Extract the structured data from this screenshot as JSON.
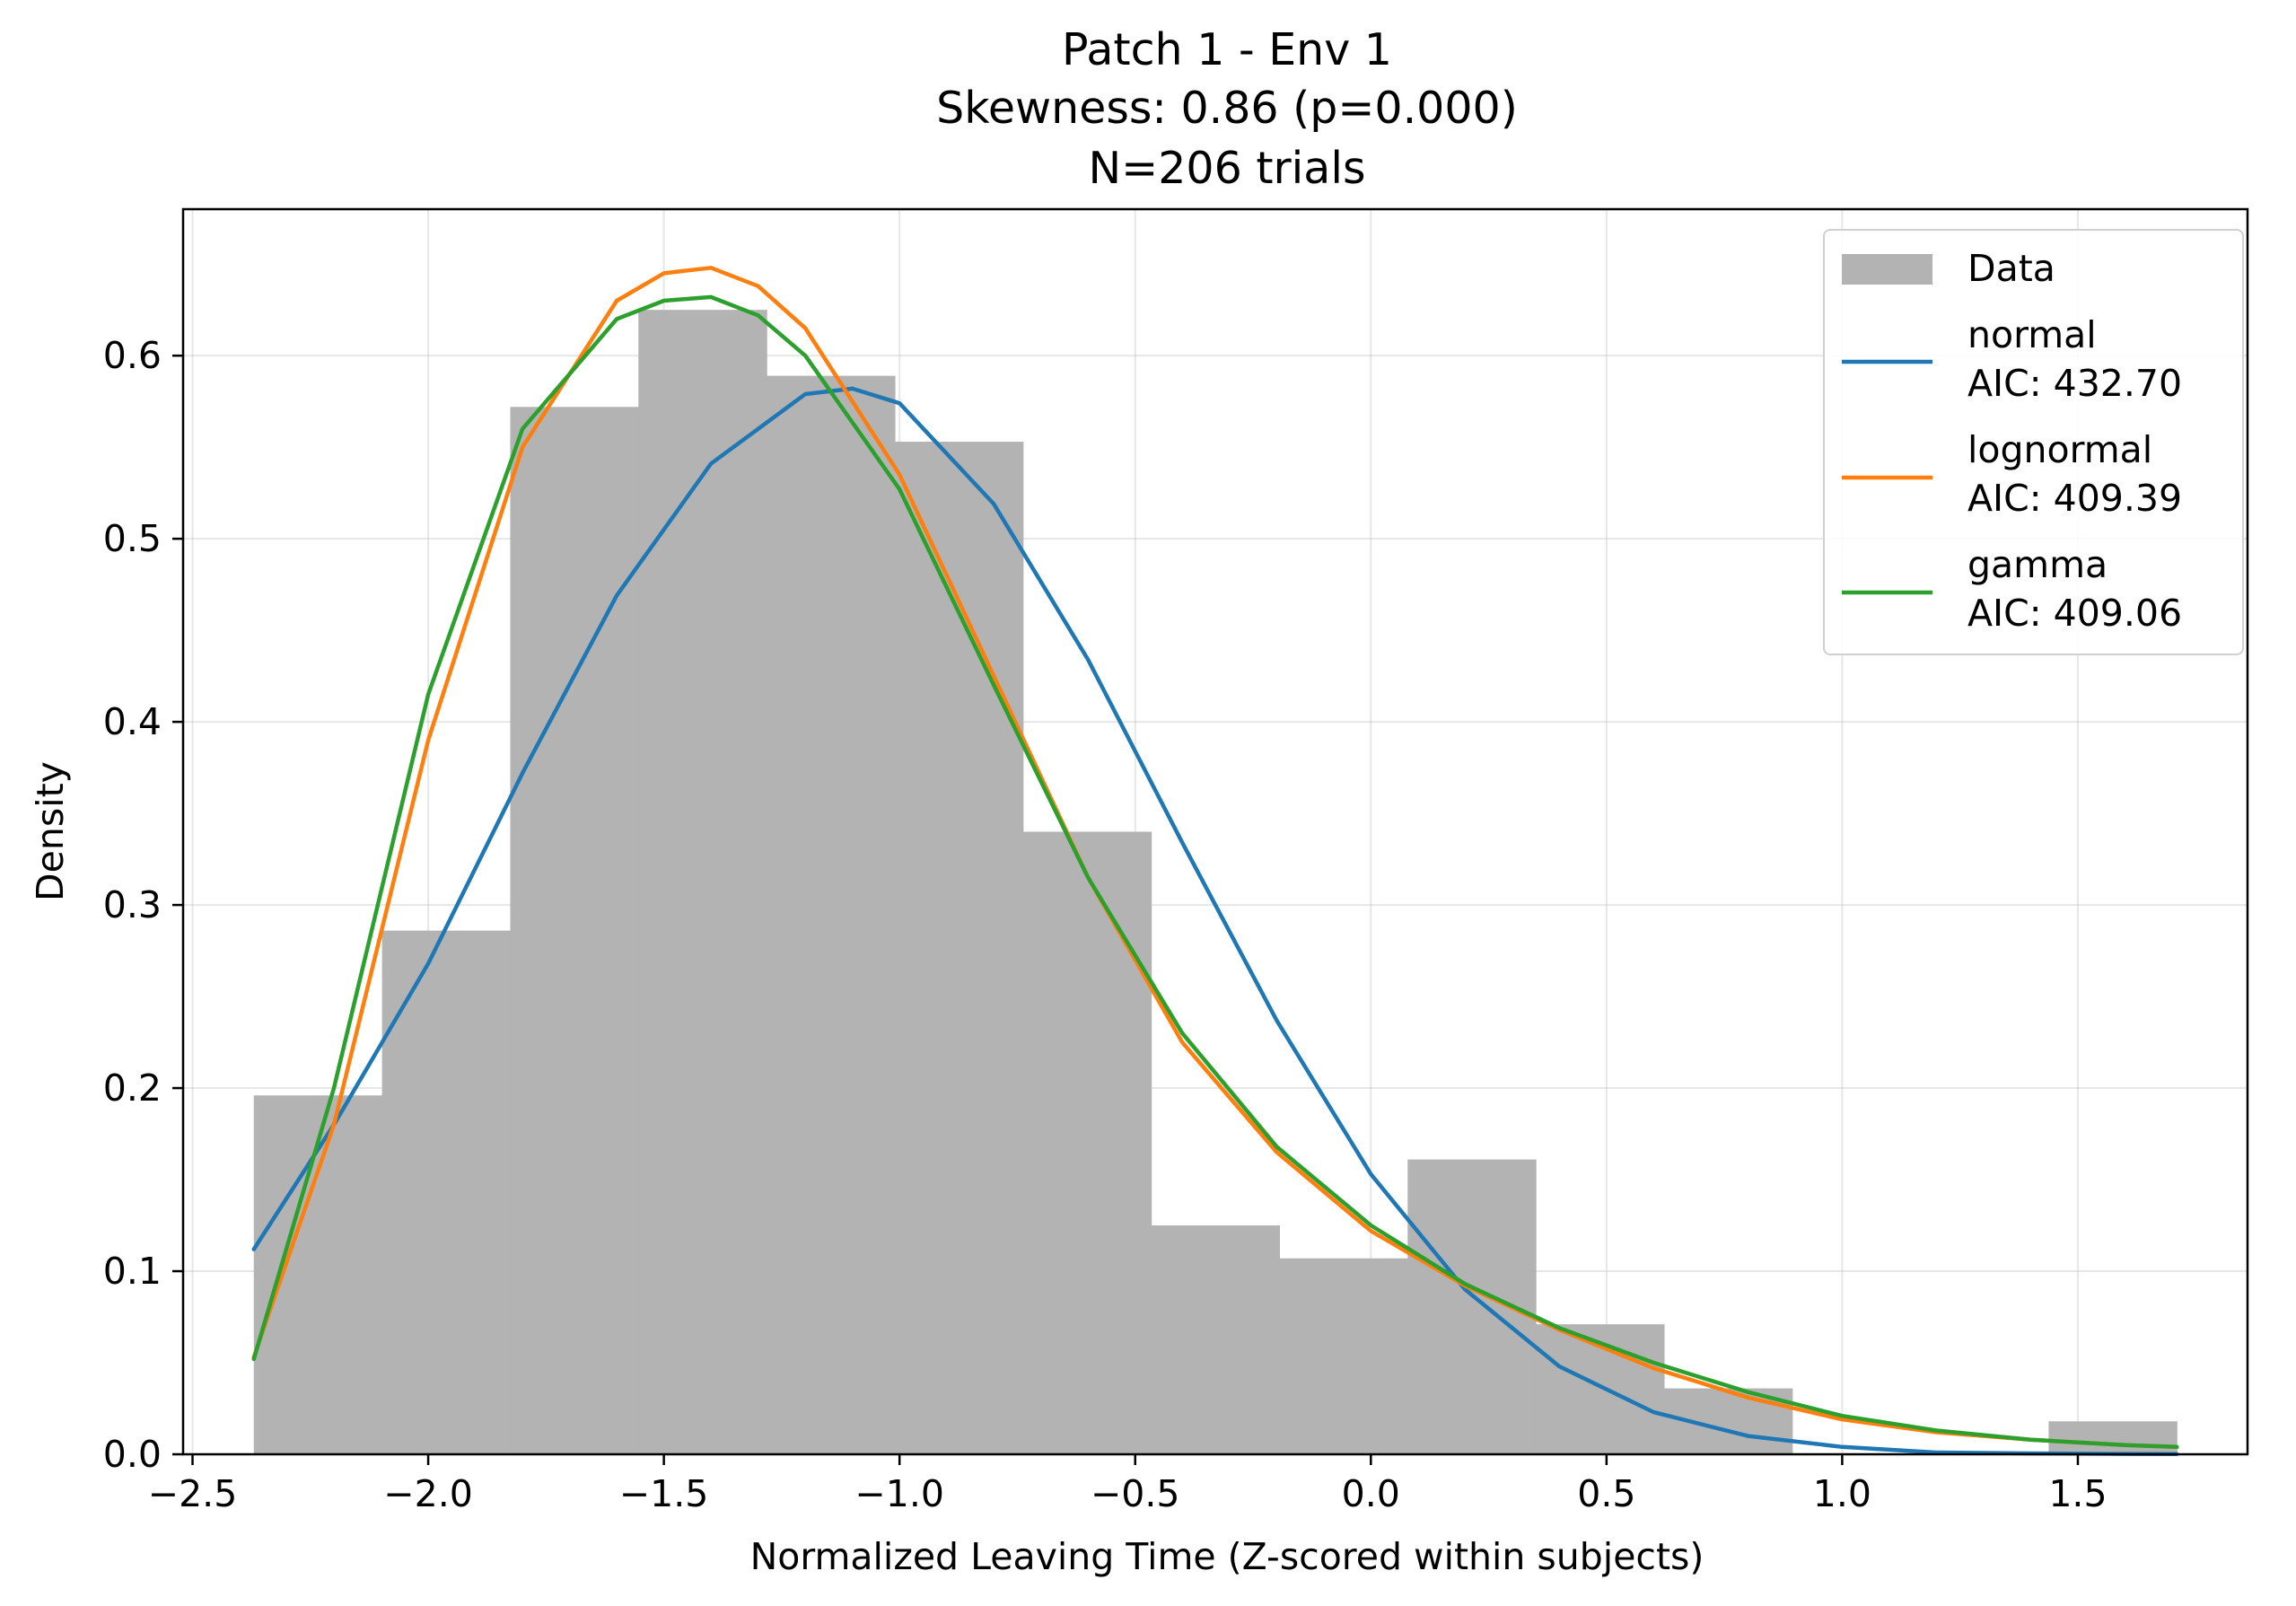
{
  "chart_data": {
    "type": "histogram",
    "title_lines": [
      "Patch 1 - Env 1",
      "Skewness: 0.86 (p=0.000)",
      "N=206 trials"
    ],
    "xlabel": "Normalized Leaving Time (Z-scored within subjects)",
    "ylabel": "Density",
    "xlim": [
      -2.52,
      1.86
    ],
    "ylim": [
      0.0,
      0.68
    ],
    "x_ticks": [
      -2.5,
      -2.0,
      -1.5,
      -1.0,
      -0.5,
      0.0,
      0.5,
      1.0,
      1.5
    ],
    "x_tick_labels": [
      "−2.5",
      "−2.0",
      "−1.5",
      "−1.0",
      "−0.5",
      "0.0",
      "0.5",
      "1.0",
      "1.5"
    ],
    "y_ticks": [
      0.0,
      0.1,
      0.2,
      0.3,
      0.4,
      0.5,
      0.6
    ],
    "y_tick_labels": [
      "0.0",
      "0.1",
      "0.2",
      "0.3",
      "0.4",
      "0.5",
      "0.6"
    ],
    "grid": true,
    "legend_position": "upper-right",
    "histogram": {
      "name": "Data",
      "color": "#b3b3b3",
      "bin_edges": [
        -2.37,
        -2.098,
        -1.826,
        -1.554,
        -1.282,
        -1.01,
        -0.738,
        -0.466,
        -0.194,
        0.078,
        0.35,
        0.622,
        0.894,
        1.166,
        1.438,
        1.71
      ],
      "densities": [
        0.196,
        0.286,
        0.572,
        0.625,
        0.589,
        0.553,
        0.34,
        0.125,
        0.107,
        0.161,
        0.071,
        0.036,
        0.0,
        0.0,
        0.018
      ]
    },
    "series": [
      {
        "name": "normal",
        "aic_label": "AIC: 432.70",
        "color": "#1f77b4",
        "x": [
          -2.37,
          -2.2,
          -2.0,
          -1.8,
          -1.6,
          -1.4,
          -1.2,
          -1.1,
          -1.0,
          -0.8,
          -0.6,
          -0.4,
          -0.2,
          0.0,
          0.2,
          0.4,
          0.6,
          0.8,
          1.0,
          1.2,
          1.4,
          1.6,
          1.71
        ],
        "y": [
          0.112,
          0.18,
          0.268,
          0.372,
          0.469,
          0.541,
          0.579,
          0.582,
          0.574,
          0.519,
          0.434,
          0.334,
          0.237,
          0.153,
          0.09,
          0.048,
          0.023,
          0.01,
          0.004,
          0.001,
          0.0005,
          0.0002,
          0.0001
        ]
      },
      {
        "name": "lognormal",
        "aic_label": "AIC: 409.39",
        "color": "#ff7f0e",
        "x": [
          -2.37,
          -2.2,
          -2.0,
          -1.8,
          -1.6,
          -1.5,
          -1.4,
          -1.3,
          -1.2,
          -1.0,
          -0.8,
          -0.6,
          -0.4,
          -0.2,
          0.0,
          0.2,
          0.4,
          0.6,
          0.8,
          1.0,
          1.2,
          1.4,
          1.6,
          1.71
        ],
        "y": [
          0.053,
          0.18,
          0.39,
          0.55,
          0.63,
          0.645,
          0.648,
          0.638,
          0.615,
          0.535,
          0.425,
          0.315,
          0.225,
          0.165,
          0.122,
          0.092,
          0.068,
          0.047,
          0.031,
          0.019,
          0.012,
          0.008,
          0.005,
          0.004
        ]
      },
      {
        "name": "gamma",
        "aic_label": "AIC: 409.06",
        "color": "#2ca02c",
        "x": [
          -2.37,
          -2.2,
          -2.0,
          -1.8,
          -1.6,
          -1.5,
          -1.4,
          -1.3,
          -1.2,
          -1.0,
          -0.8,
          -0.6,
          -0.4,
          -0.2,
          0.0,
          0.2,
          0.4,
          0.6,
          0.8,
          1.0,
          1.2,
          1.4,
          1.6,
          1.71
        ],
        "y": [
          0.052,
          0.2,
          0.415,
          0.56,
          0.62,
          0.63,
          0.632,
          0.622,
          0.6,
          0.527,
          0.42,
          0.315,
          0.23,
          0.168,
          0.125,
          0.093,
          0.069,
          0.05,
          0.034,
          0.021,
          0.013,
          0.008,
          0.005,
          0.004
        ]
      }
    ]
  }
}
